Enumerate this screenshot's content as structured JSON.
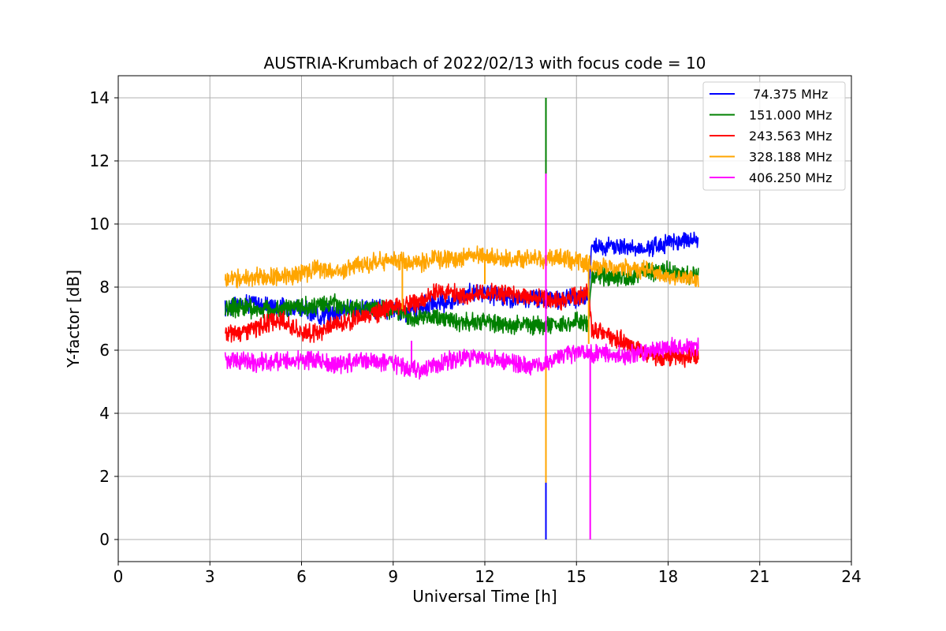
{
  "chart_data": {
    "type": "line",
    "title": "AUSTRIA-Krumbach of 2022/02/13 with focus code = 10",
    "xlabel": "Universal Time [h]",
    "ylabel": "Y-factor [dB]",
    "xlim": [
      0,
      24
    ],
    "ylim": [
      -0.7,
      14.7
    ],
    "xticks": [
      0,
      3,
      6,
      9,
      12,
      15,
      18,
      21,
      24
    ],
    "yticks": [
      0,
      2,
      4,
      6,
      8,
      10,
      12,
      14
    ],
    "grid": true,
    "legend_position": "top-right",
    "series": [
      {
        "name": " 74.375 MHz",
        "color": "#0000ff",
        "x": [
          3.5,
          4.0,
          4.5,
          5.0,
          5.5,
          6.0,
          6.5,
          7.0,
          7.5,
          8.0,
          8.5,
          9.0,
          9.5,
          10.0,
          10.5,
          11.0,
          11.5,
          12.0,
          12.5,
          13.0,
          13.5,
          14.0,
          14.5,
          15.0,
          15.4,
          15.5,
          16.0,
          16.5,
          17.0,
          17.5,
          18.0,
          18.5,
          19.0
        ],
        "y": [
          7.3,
          7.5,
          7.5,
          7.4,
          7.4,
          7.3,
          7.1,
          7.2,
          7.3,
          7.3,
          7.3,
          7.3,
          7.2,
          7.4,
          7.5,
          7.6,
          7.8,
          7.8,
          7.7,
          7.6,
          7.7,
          7.6,
          7.6,
          7.6,
          7.7,
          9.3,
          9.3,
          9.3,
          9.2,
          9.3,
          9.4,
          9.5,
          9.5
        ],
        "spikes": [
          {
            "x": 14.0,
            "low": 0.0,
            "high": 7.6
          }
        ]
      },
      {
        "name": "151.000 MHz",
        "color": "#008000",
        "x": [
          3.5,
          4.0,
          4.5,
          5.0,
          5.5,
          6.0,
          6.5,
          7.0,
          7.5,
          8.0,
          8.5,
          9.0,
          9.5,
          10.0,
          10.5,
          11.0,
          11.5,
          12.0,
          12.5,
          13.0,
          13.5,
          14.0,
          14.5,
          15.0,
          15.4,
          15.5,
          16.0,
          16.5,
          17.0,
          17.5,
          18.0,
          18.5,
          19.0
        ],
        "y": [
          7.3,
          7.4,
          7.3,
          7.3,
          7.3,
          7.4,
          7.4,
          7.5,
          7.4,
          7.3,
          7.3,
          7.3,
          7.0,
          7.0,
          7.0,
          6.9,
          6.9,
          6.9,
          6.8,
          6.8,
          6.8,
          6.8,
          6.8,
          6.9,
          6.9,
          8.4,
          8.3,
          8.3,
          8.4,
          8.5,
          8.5,
          8.4,
          8.4
        ],
        "spikes": [
          {
            "x": 14.0,
            "low": 3.2,
            "high": 14.0
          }
        ]
      },
      {
        "name": "243.563 MHz",
        "color": "#ff0000",
        "x": [
          3.5,
          4.0,
          4.5,
          5.0,
          5.5,
          6.0,
          6.5,
          7.0,
          7.5,
          8.0,
          8.5,
          9.0,
          9.5,
          10.0,
          10.5,
          11.0,
          11.5,
          12.0,
          12.5,
          13.0,
          13.5,
          14.0,
          14.5,
          15.0,
          15.4,
          15.5,
          16.0,
          16.5,
          17.0,
          17.5,
          18.0,
          18.5,
          19.0
        ],
        "y": [
          6.5,
          6.6,
          6.7,
          6.9,
          6.9,
          6.6,
          6.5,
          6.8,
          6.9,
          7.1,
          7.2,
          7.4,
          7.4,
          7.6,
          7.9,
          7.8,
          7.7,
          7.8,
          7.8,
          7.8,
          7.7,
          7.6,
          7.6,
          7.7,
          7.8,
          6.6,
          6.5,
          6.3,
          6.0,
          5.8,
          5.8,
          5.8,
          5.8
        ],
        "spikes": []
      },
      {
        "name": "328.188 MHz",
        "color": "#ffa500",
        "x": [
          3.5,
          4.0,
          4.5,
          5.0,
          5.5,
          6.0,
          6.5,
          7.0,
          7.5,
          8.0,
          8.5,
          9.0,
          9.5,
          10.0,
          10.5,
          11.0,
          11.5,
          12.0,
          12.5,
          13.0,
          13.5,
          14.0,
          14.5,
          15.0,
          15.4,
          15.5,
          16.0,
          16.5,
          17.0,
          17.5,
          18.0,
          18.5,
          19.0
        ],
        "y": [
          8.2,
          8.3,
          8.3,
          8.3,
          8.4,
          8.4,
          8.6,
          8.5,
          8.6,
          8.7,
          8.8,
          8.9,
          8.8,
          8.8,
          8.9,
          8.9,
          9.0,
          9.0,
          8.9,
          8.9,
          8.9,
          8.9,
          8.9,
          8.8,
          8.8,
          8.6,
          8.6,
          8.6,
          8.6,
          8.5,
          8.3,
          8.3,
          8.2
        ],
        "spikes": [
          {
            "x": 9.3,
            "low": 7.3,
            "high": 8.8
          },
          {
            "x": 12.0,
            "low": 8.1,
            "high": 9.0
          },
          {
            "x": 14.0,
            "low": 1.8,
            "high": 8.9
          },
          {
            "x": 15.4,
            "low": 6.2,
            "high": 8.8
          }
        ]
      },
      {
        "name": "406.250 MHz",
        "color": "#ff00ff",
        "x": [
          3.5,
          4.0,
          4.5,
          5.0,
          5.5,
          6.0,
          6.5,
          7.0,
          7.5,
          8.0,
          8.5,
          9.0,
          9.5,
          10.0,
          10.5,
          11.0,
          11.5,
          12.0,
          12.5,
          13.0,
          13.5,
          14.0,
          14.5,
          15.0,
          15.4,
          15.5,
          16.0,
          16.5,
          17.0,
          17.5,
          18.0,
          18.5,
          19.0
        ],
        "y": [
          5.7,
          5.7,
          5.6,
          5.6,
          5.7,
          5.7,
          5.7,
          5.5,
          5.6,
          5.7,
          5.6,
          5.6,
          5.4,
          5.4,
          5.6,
          5.7,
          5.8,
          5.8,
          5.7,
          5.6,
          5.5,
          5.6,
          5.8,
          5.9,
          5.9,
          5.9,
          5.9,
          5.8,
          5.9,
          6.0,
          6.1,
          6.1,
          6.1
        ],
        "spikes": [
          {
            "x": 9.6,
            "low": 5.5,
            "high": 6.3
          },
          {
            "x": 14.0,
            "low": 5.6,
            "high": 11.6
          },
          {
            "x": 15.45,
            "low": 0.0,
            "high": 6.0
          }
        ]
      }
    ]
  }
}
